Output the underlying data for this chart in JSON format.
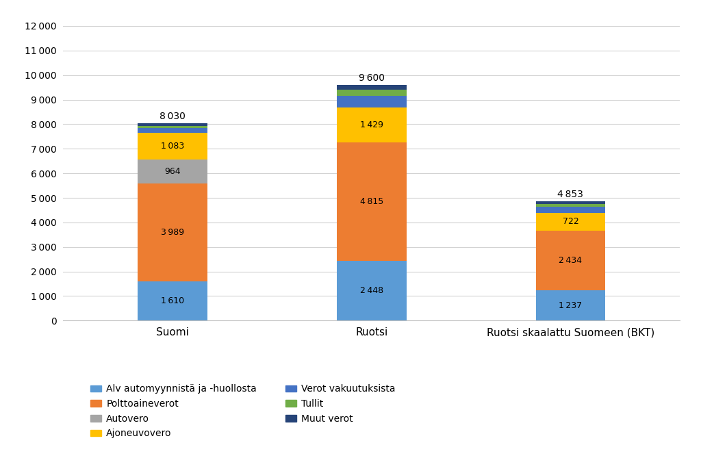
{
  "categories": [
    "Suomi",
    "Ruotsi",
    "Ruotsi skaalattu Suomeen (BKT)"
  ],
  "segments": [
    {
      "label": "Alv automyynnistä ja -huollosta",
      "color": "#5B9BD5",
      "values": [
        1610,
        2448,
        1237
      ],
      "show_label": [
        true,
        true,
        true
      ]
    },
    {
      "label": "Polttoaineverot",
      "color": "#ED7D31",
      "values": [
        3989,
        4815,
        2434
      ],
      "show_label": [
        true,
        true,
        true
      ]
    },
    {
      "label": "Autovero",
      "color": "#A5A5A5",
      "values": [
        964,
        0,
        0
      ],
      "show_label": [
        true,
        false,
        false
      ]
    },
    {
      "label": "Ajoneuvovero",
      "color": "#FFC000",
      "values": [
        1083,
        1429,
        722
      ],
      "show_label": [
        true,
        true,
        true
      ]
    },
    {
      "label": "Verot vakuutuksista",
      "color": "#4472C4",
      "values": [
        192,
        460,
        233
      ],
      "show_label": [
        false,
        false,
        false
      ]
    },
    {
      "label": "Tullit",
      "color": "#70AD47",
      "values": [
        88,
        248,
        126
      ],
      "show_label": [
        false,
        false,
        false
      ]
    },
    {
      "label": "Muut verot",
      "color": "#264478",
      "values": [
        104,
        200,
        101
      ],
      "show_label": [
        false,
        false,
        false
      ]
    }
  ],
  "totals": [
    8030,
    9600,
    4853
  ],
  "ylim": [
    0,
    12500
  ],
  "ytick_step": 1000,
  "background_color": "#FFFFFF",
  "bar_width": 0.35,
  "label_fontsize": 9,
  "tick_fontsize": 10,
  "total_fontsize": 10
}
